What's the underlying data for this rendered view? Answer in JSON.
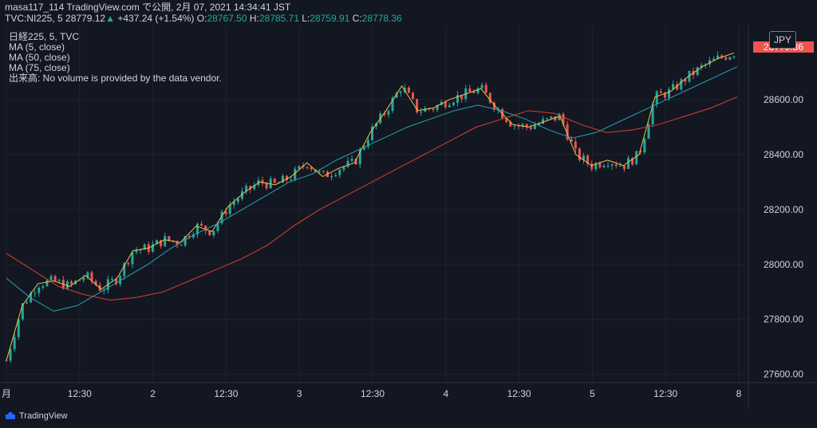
{
  "header": {
    "title": "masa117_114 TradingView.com で公開, 2月 07, 2021 14:34:41 JST",
    "symbol": "TVC:NI225, 5",
    "last": "28779.12",
    "change": "+437.24 (+1.54%)",
    "o_label": "O:",
    "o_value": "28767.50",
    "h_label": "H:",
    "h_value": "28785.71",
    "l_label": "L:",
    "l_value": "28759.91",
    "c_label": "C:",
    "c_value": "28778.36"
  },
  "legend": {
    "line1": "日経225, 5, TVC",
    "line2": "MA (5, close)",
    "line3": "MA (50, close)",
    "line4": "MA (75, close)",
    "line5": "出来高: No volume is provided by the data vendor."
  },
  "currency_button": "JPY",
  "last_price_label": "28779.36",
  "footer": {
    "brand": "TradingView"
  },
  "colors": {
    "background": "#131722",
    "up": "#26a69a",
    "down": "#ef5350",
    "ma5": "#e8c547",
    "ma50": "#26a2b5",
    "ma75": "#d9402f",
    "grid": "#1f232e"
  },
  "chart_data": {
    "type": "line",
    "y_ticks": [
      "27600.00",
      "27800.00",
      "28000.00",
      "28200.00",
      "28400.00",
      "28600.00"
    ],
    "ylim": [
      27570,
      28870
    ],
    "x_ticks": [
      "月",
      "12:30",
      "2",
      "12:30",
      "3",
      "12:30",
      "4",
      "12:30",
      "5",
      "12:30",
      "8"
    ],
    "series": [
      {
        "name": "MA (5, close)",
        "color": "#e8c547",
        "values": [
          27650,
          27850,
          27930,
          27940,
          27920,
          27960,
          27910,
          27950,
          28050,
          28060,
          28090,
          28080,
          28140,
          28120,
          28210,
          28260,
          28300,
          28290,
          28320,
          28370,
          28320,
          28350,
          28370,
          28480,
          28560,
          28650,
          28560,
          28570,
          28600,
          28620,
          28640,
          28570,
          28510,
          28500,
          28520,
          28540,
          28400,
          28360,
          28380,
          28360,
          28400,
          28610,
          28630,
          28680,
          28720,
          28750,
          28770
        ]
      },
      {
        "name": "MA (50, close)",
        "color": "#26a2b5",
        "values": [
          27950,
          27880,
          27830,
          27850,
          27900,
          27950,
          28000,
          28060,
          28110,
          28150,
          28200,
          28250,
          28300,
          28330,
          28380,
          28420,
          28460,
          28500,
          28530,
          28560,
          28580,
          28560,
          28530,
          28490,
          28460,
          28480,
          28520,
          28560,
          28600,
          28640,
          28680,
          28720
        ]
      },
      {
        "name": "MA (75, close)",
        "color": "#d9402f",
        "values": [
          28040,
          27980,
          27920,
          27890,
          27870,
          27880,
          27900,
          27940,
          27980,
          28020,
          28070,
          28140,
          28200,
          28250,
          28300,
          28350,
          28400,
          28450,
          28500,
          28530,
          28560,
          28550,
          28510,
          28480,
          28490,
          28510,
          28540,
          28570,
          28610
        ]
      }
    ]
  }
}
